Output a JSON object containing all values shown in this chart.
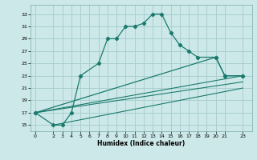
{
  "xlabel": "Humidex (Indice chaleur)",
  "bg_color": "#cce8e8",
  "grid_color": "#aacfcf",
  "line_color": "#1a7a6e",
  "xlim": [
    -0.5,
    24
  ],
  "ylim": [
    14,
    34.5
  ],
  "xticks": [
    0,
    2,
    3,
    4,
    5,
    6,
    7,
    8,
    9,
    10,
    11,
    12,
    13,
    14,
    15,
    16,
    17,
    18,
    19,
    20,
    21,
    23
  ],
  "yticks": [
    15,
    17,
    19,
    21,
    23,
    25,
    27,
    29,
    31,
    33
  ],
  "series1_x": [
    0,
    2,
    3,
    4,
    5,
    7,
    8,
    9,
    10,
    11,
    12,
    13,
    14,
    15,
    16,
    17,
    18,
    20,
    21,
    23
  ],
  "series1_y": [
    17,
    15,
    15,
    17,
    23,
    25,
    29,
    29,
    31,
    31,
    31.5,
    33,
    33,
    30,
    28,
    27,
    26,
    26,
    23,
    23
  ],
  "series2_x": [
    0,
    20,
    21,
    23
  ],
  "series2_y": [
    17,
    26,
    23,
    23
  ],
  "series3_x": [
    0,
    23
  ],
  "series3_y": [
    17,
    23
  ],
  "series4_x": [
    0,
    23
  ],
  "series4_y": [
    17,
    22
  ],
  "series5_x": [
    2,
    23
  ],
  "series5_y": [
    15,
    21
  ]
}
